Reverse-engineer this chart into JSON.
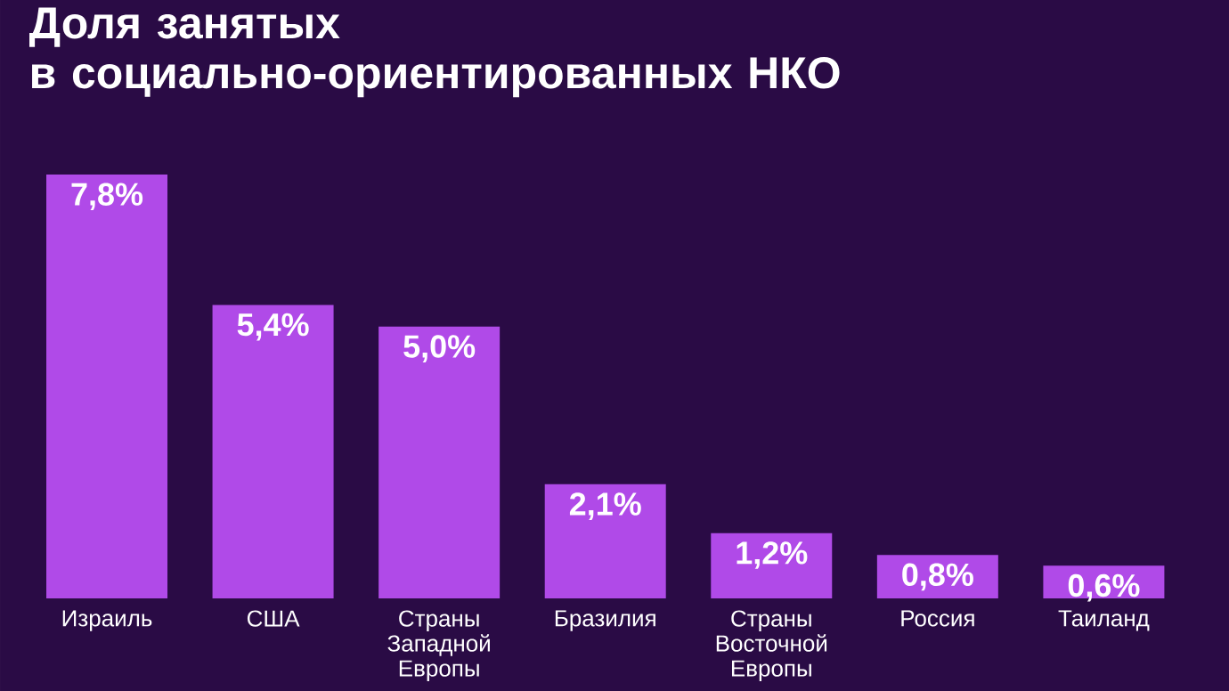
{
  "chart_data": {
    "type": "bar",
    "title": "Доля занятых\nв социально-ориентированных НКО",
    "categories": [
      "Израиль",
      "США",
      "Страны Западной Европы",
      "Бразилия",
      "Страны Восточной Европы",
      "Россия",
      "Таиланд"
    ],
    "values": [
      7.8,
      5.4,
      5.0,
      2.1,
      1.2,
      0.8,
      0.6
    ],
    "value_labels": [
      "7,8%",
      "5,4%",
      "5,0%",
      "2,1%",
      "1,2%",
      "0,8%",
      "0,6%"
    ],
    "color": "#b04ae8"
  }
}
